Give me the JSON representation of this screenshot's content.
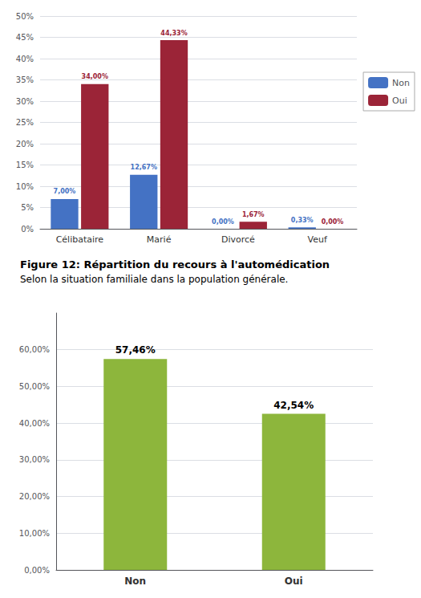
{
  "chart_data": [
    {
      "type": "bar",
      "categories": [
        "Célibataire",
        "Marié",
        "Divorcé",
        "Veuf"
      ],
      "series": [
        {
          "name": "Non",
          "color": "#4472C4",
          "values": [
            7.0,
            12.67,
            0.0,
            0.33
          ],
          "value_labels": [
            "7,00%",
            "12,67%",
            "0,00%",
            "0,33%"
          ]
        },
        {
          "name": "Oui",
          "color": "#9B2437",
          "values": [
            34.0,
            44.33,
            1.67,
            0.0
          ],
          "value_labels": [
            "34,00%",
            "44,33%",
            "1,67%",
            "0,00%"
          ]
        }
      ],
      "ylim": [
        0,
        50
      ],
      "yticks": [
        {
          "value": 0,
          "label": "0%"
        },
        {
          "value": 5,
          "label": "5%"
        },
        {
          "value": 10,
          "label": "10%"
        },
        {
          "value": 15,
          "label": "15%"
        },
        {
          "value": 20,
          "label": "20%"
        },
        {
          "value": 25,
          "label": "25%"
        },
        {
          "value": 30,
          "label": "30%"
        },
        {
          "value": 35,
          "label": "35%"
        },
        {
          "value": 40,
          "label": "40%"
        },
        {
          "value": 45,
          "label": "45%"
        },
        {
          "value": 50,
          "label": "50%"
        }
      ],
      "grid": true,
      "legend": "right",
      "data_labels": true
    },
    {
      "type": "bar",
      "title": "Figure 12: Répartition du recours à l'automédication",
      "subtitle": "Selon la situation familiale dans la population générale.",
      "categories": [
        "Non",
        "Oui"
      ],
      "values": [
        57.46,
        42.54
      ],
      "value_labels": [
        "57,46%",
        "42,54%"
      ],
      "color": "#8DB63C",
      "ylim": [
        0,
        70
      ],
      "yticks": [
        {
          "value": 0,
          "label": "0,00%"
        },
        {
          "value": 10,
          "label": "10,00%"
        },
        {
          "value": 20,
          "label": "20,00%"
        },
        {
          "value": 30,
          "label": "30,00%"
        },
        {
          "value": 40,
          "label": "40,00%"
        },
        {
          "value": 50,
          "label": "50,00%"
        },
        {
          "value": 60,
          "label": "60,00%"
        }
      ],
      "grid": true,
      "data_labels": true
    }
  ]
}
